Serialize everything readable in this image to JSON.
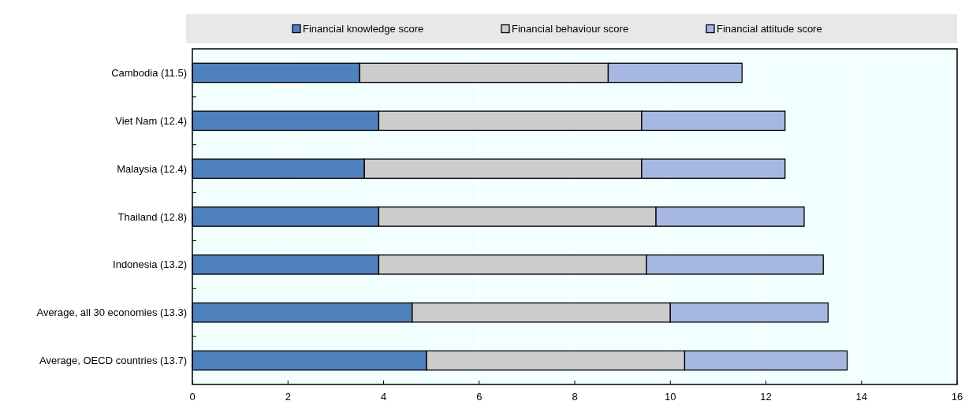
{
  "chart_data": {
    "type": "bar",
    "orientation": "horizontal",
    "stacked": true,
    "categories": [
      "Cambodia (11.5)",
      "Viet Nam (12.4)",
      "Malaysia (12.4)",
      "Thailand (12.8)",
      "Indonesia (13.2)",
      "Average, all 30 economies (13.3)",
      "Average, OECD countries (13.7)"
    ],
    "series": [
      {
        "name": "Financial knowledge score",
        "color": "#4f81bd",
        "values": [
          3.5,
          3.9,
          3.6,
          3.9,
          3.9,
          4.6,
          4.9
        ]
      },
      {
        "name": "Financial behaviour score",
        "color": "#cccccc",
        "values": [
          5.2,
          5.5,
          5.8,
          5.8,
          5.6,
          5.4,
          5.4
        ]
      },
      {
        "name": "Financial attitude score",
        "color": "#a6b8e2",
        "values": [
          2.8,
          3.0,
          3.0,
          3.1,
          3.7,
          3.3,
          3.4
        ]
      }
    ],
    "xlim": [
      0,
      16
    ],
    "xticks": [
      0,
      2,
      4,
      6,
      8,
      10,
      12,
      14,
      16
    ],
    "grid": "x",
    "legend": "top"
  }
}
